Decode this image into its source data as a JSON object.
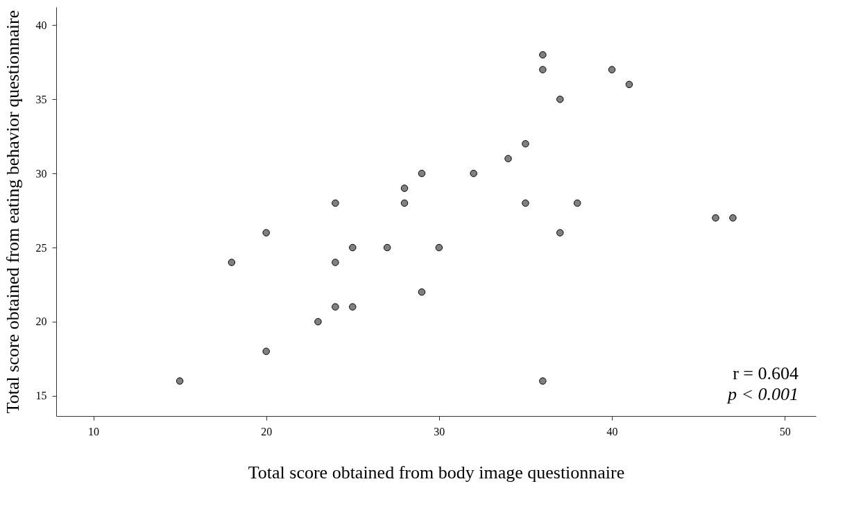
{
  "chart_data": {
    "type": "scatter",
    "xlabel": "Total score obtained from body image questionnaire",
    "ylabel": "Total score obtained from eating behavior questionnaire",
    "x": [
      15,
      18,
      20,
      20,
      23,
      24,
      24,
      24,
      25,
      25,
      27,
      28,
      28,
      29,
      29,
      30,
      32,
      34,
      35,
      35,
      36,
      36,
      36,
      37,
      37,
      38,
      40,
      41,
      46,
      47
    ],
    "series": [
      {
        "color": "#808080",
        "values": [
          16,
          24,
          26,
          18,
          20,
          28,
          24,
          21,
          25,
          21,
          25,
          29,
          28,
          30,
          22,
          25,
          30,
          31,
          32,
          28,
          38,
          37,
          16,
          35,
          26,
          28,
          37,
          36,
          27,
          27
        ]
      }
    ],
    "xlim": [
      7.85,
      51.8
    ],
    "ylim": [
      13.64,
      41.23
    ],
    "xticks": [
      10,
      20,
      30,
      40,
      50
    ],
    "yticks": [
      15,
      20,
      25,
      30,
      35,
      40
    ],
    "marker": "circle",
    "grid": false,
    "annotations": [
      "r = 0.604",
      "p < 0.001"
    ]
  }
}
